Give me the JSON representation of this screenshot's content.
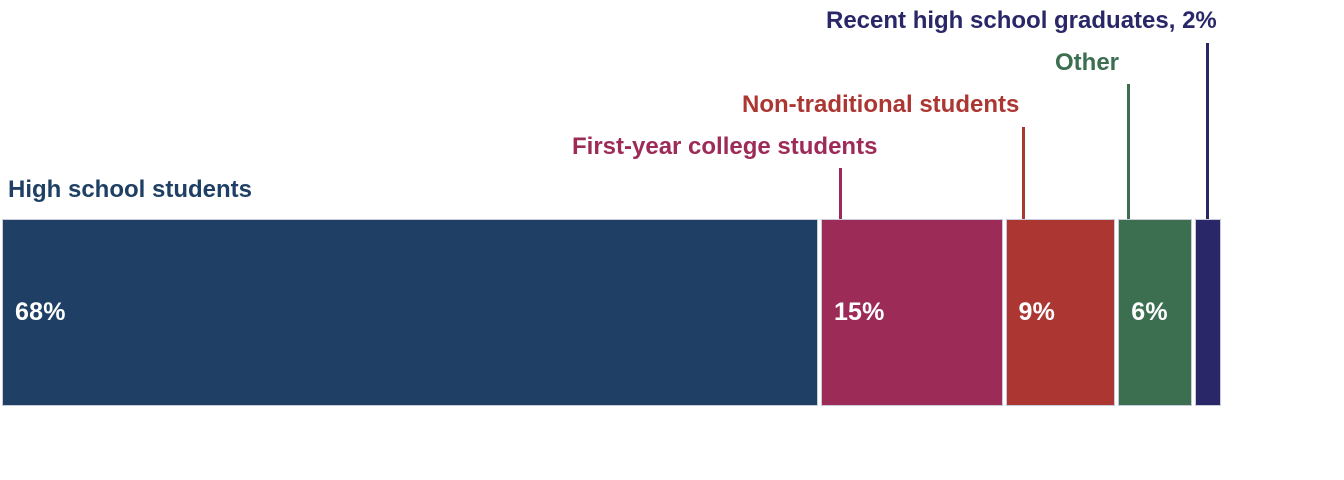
{
  "page": {
    "background_color": "#FFFFFF"
  },
  "chart_data": {
    "type": "bar",
    "orientation": "horizontal",
    "stacked": true,
    "percent_of_total": true,
    "title": "",
    "xlabel": "",
    "ylabel": "",
    "xlim": [
      0,
      100
    ],
    "grid": false,
    "axes_visible": false,
    "legend_position": "callout labels above bar with colored leader lines",
    "value_label_color": "#FFFFFF",
    "segments": [
      {
        "label": "High school students",
        "value": 68,
        "bar_text": "68%",
        "color": "#1F4064",
        "leader_line": false
      },
      {
        "label": "First-year college students",
        "value": 15,
        "bar_text": "15%",
        "color": "#9D2B57",
        "leader_line": true
      },
      {
        "label": "Non-traditional students",
        "value": 9,
        "bar_text": "9%",
        "color": "#AC3732",
        "leader_line": true
      },
      {
        "label": "Other",
        "value": 6,
        "bar_text": "6%",
        "color": "#3C6E50",
        "leader_line": true
      },
      {
        "label": "Recent high school graduates, 2%",
        "value": 2,
        "bar_text": "",
        "color": "#2A2768",
        "leader_line": true
      }
    ]
  }
}
